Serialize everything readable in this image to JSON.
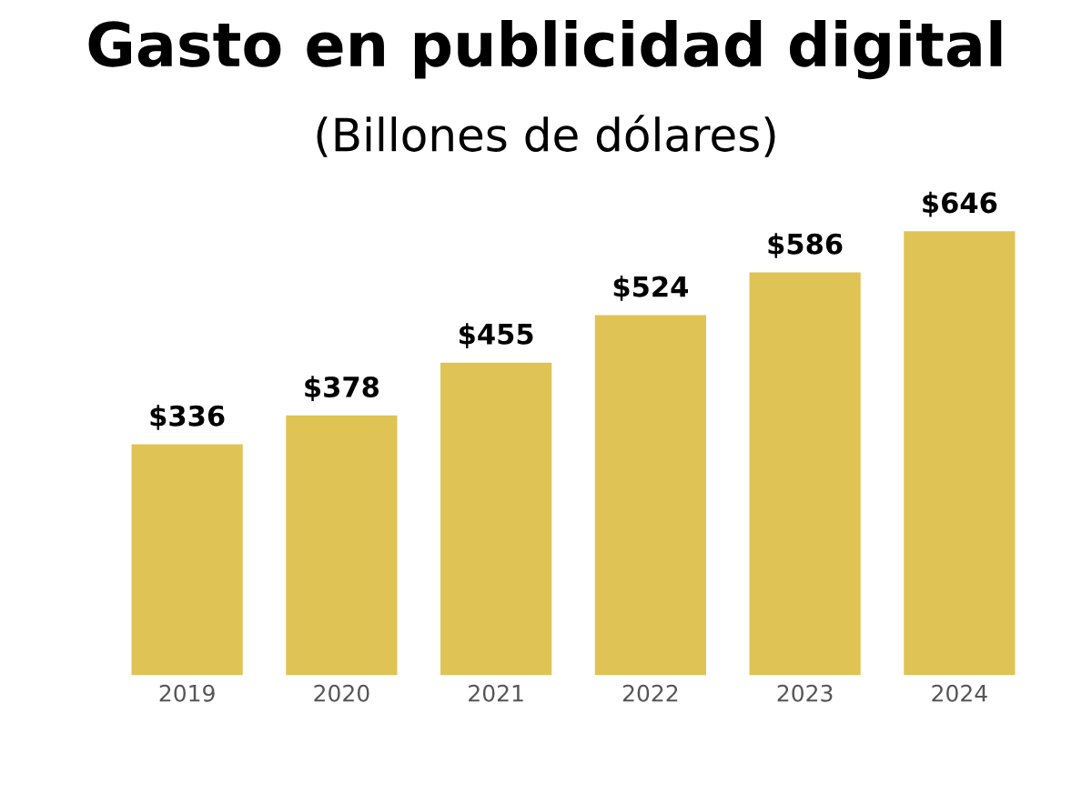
{
  "chart_data": {
    "type": "bar",
    "title": "Gasto en publicidad digital",
    "subtitle": "(Billones de dólares)",
    "categories": [
      "2019",
      "2020",
      "2021",
      "2022",
      "2023",
      "2024"
    ],
    "values": [
      336,
      378,
      455,
      524,
      586,
      646
    ],
    "value_labels": [
      "$336",
      "$378",
      "$455",
      "$524",
      "$586",
      "$646"
    ],
    "color": "#dfc355",
    "grid": false,
    "legend": false,
    "tick_labels": "x"
  }
}
